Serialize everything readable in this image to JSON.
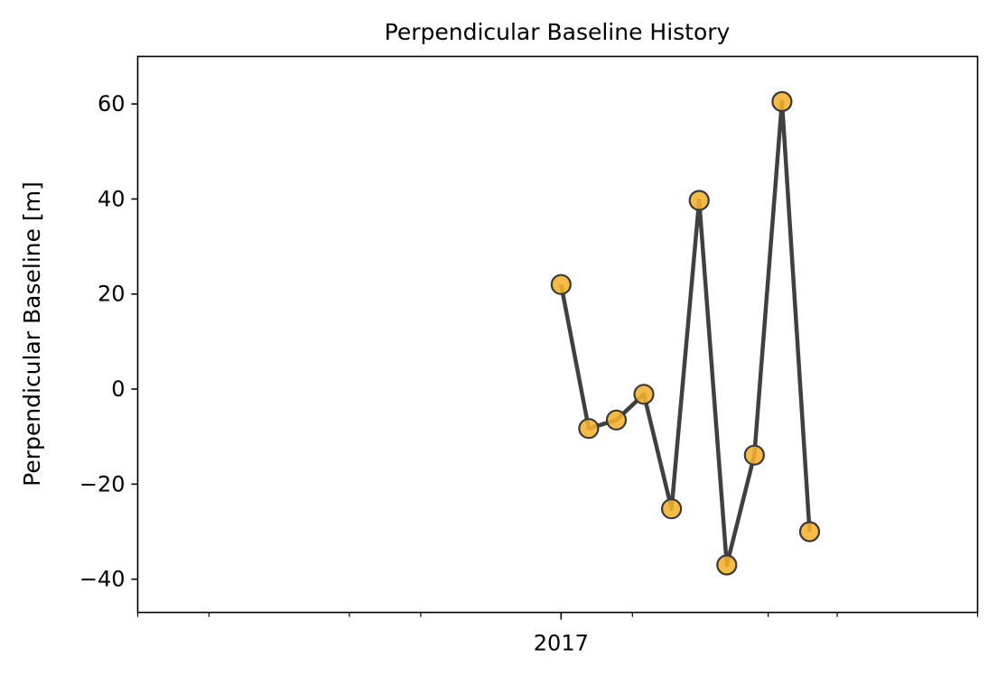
{
  "chart_data": {
    "type": "line",
    "title": "Perpendicular Baseline History",
    "xlabel": "",
    "ylabel": "Perpendicular Baseline [m]",
    "x_tick_labels": [
      "2017"
    ],
    "y_ticks": [
      -40,
      -20,
      0,
      20,
      40,
      60
    ],
    "y_tick_labels": [
      "−40",
      "−20",
      "0",
      "20",
      "40",
      "60"
    ],
    "ylim": [
      -47,
      70
    ],
    "xlim": [
      "2016-07-01",
      "2017-07-01"
    ],
    "x_minor_ticks": [
      "2016-07-01",
      "2016-08-01",
      "2016-10-01",
      "2016-11-01",
      "2017-01-01",
      "2017-02-01",
      "2017-04-01",
      "2017-05-01",
      "2017-07-01"
    ],
    "x_major_tick": "2017-01-01",
    "grid": false,
    "series": [
      {
        "x": [
          "2017-01-01",
          "2017-01-13",
          "2017-01-25",
          "2017-02-06",
          "2017-02-18",
          "2017-03-02",
          "2017-03-14",
          "2017-03-26",
          "2017-04-07",
          "2017-04-19"
        ],
        "y": [
          22.0,
          -8.3,
          -6.5,
          -1.1,
          -25.2,
          39.7,
          -37.0,
          -13.9,
          60.5,
          -30.0
        ]
      }
    ],
    "colors": {
      "line": "#404040",
      "marker_fill": "#F5B02E",
      "marker_edge": "#3a3a3a"
    }
  }
}
